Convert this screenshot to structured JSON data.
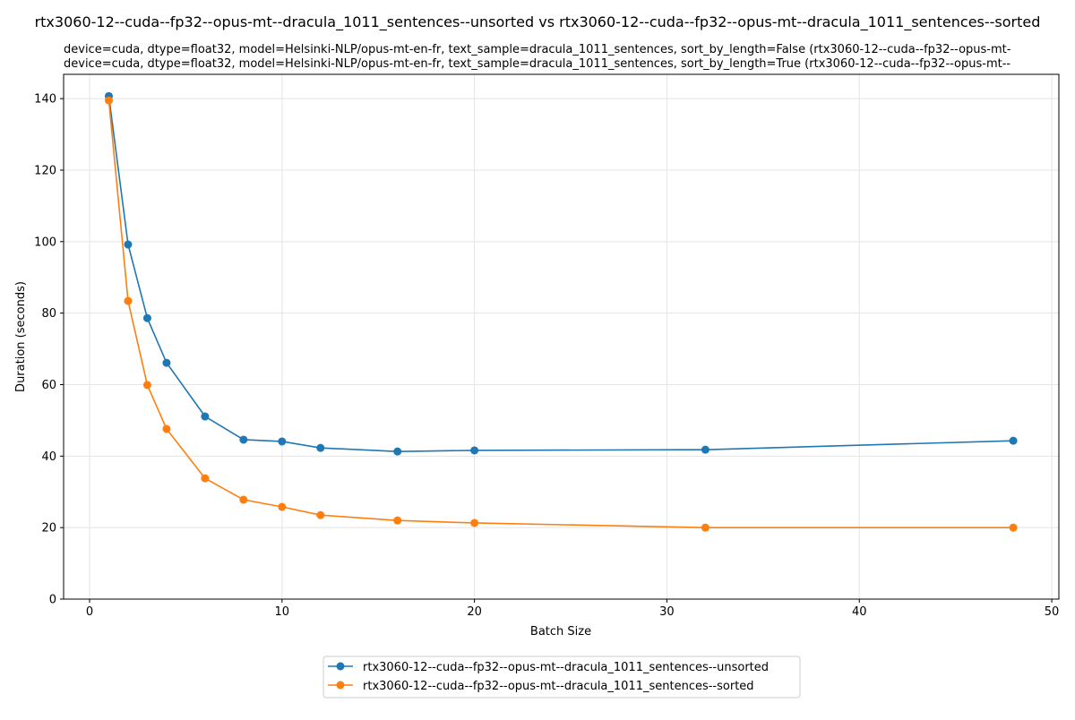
{
  "chart_data": {
    "type": "line",
    "title": "rtx3060-12--cuda--fp32--opus-mt--dracula_1011_sentences--unsorted vs rtx3060-12--cuda--fp32--opus-mt--dracula_1011_sentences--sorted",
    "subtitle_lines": [
      "device=cuda, dtype=float32, model=Helsinki-NLP/opus-mt-en-fr, text_sample=dracula_1011_sentences, sort_by_length=False (rtx3060-12--cuda--fp32--opus-mt-",
      "device=cuda, dtype=float32, model=Helsinki-NLP/opus-mt-en-fr, text_sample=dracula_1011_sentences, sort_by_length=True (rtx3060-12--cuda--fp32--opus-mt--"
    ],
    "xlabel": "Batch Size",
    "ylabel": "Duration (seconds)",
    "xlim": [
      -1.35,
      50.37
    ],
    "ylim": [
      0,
      146.8
    ],
    "xticks": [
      "0",
      "10",
      "20",
      "30",
      "40",
      "50"
    ],
    "yticks": [
      "0",
      "20",
      "40",
      "60",
      "80",
      "100",
      "120",
      "140"
    ],
    "grid": true,
    "legend_position": "bottom-center, below plot",
    "x": [
      1,
      2,
      3,
      4,
      6,
      8,
      10,
      12,
      16,
      20,
      32,
      48
    ],
    "series": [
      {
        "name": "rtx3060-12--cuda--fp32--opus-mt--dracula_1011_sentences--unsorted",
        "color": "#1f77b4",
        "values": [
          140.7,
          99.2,
          78.6,
          66.1,
          51.1,
          44.6,
          44.1,
          42.3,
          41.3,
          41.6,
          41.8,
          44.3
        ]
      },
      {
        "name": "rtx3060-12--cuda--fp32--opus-mt--dracula_1011_sentences--sorted",
        "color": "#ff7f0e",
        "values": [
          139.5,
          83.4,
          59.9,
          47.6,
          33.8,
          27.8,
          25.8,
          23.5,
          22.0,
          21.3,
          20.0,
          20.0
        ]
      }
    ]
  }
}
